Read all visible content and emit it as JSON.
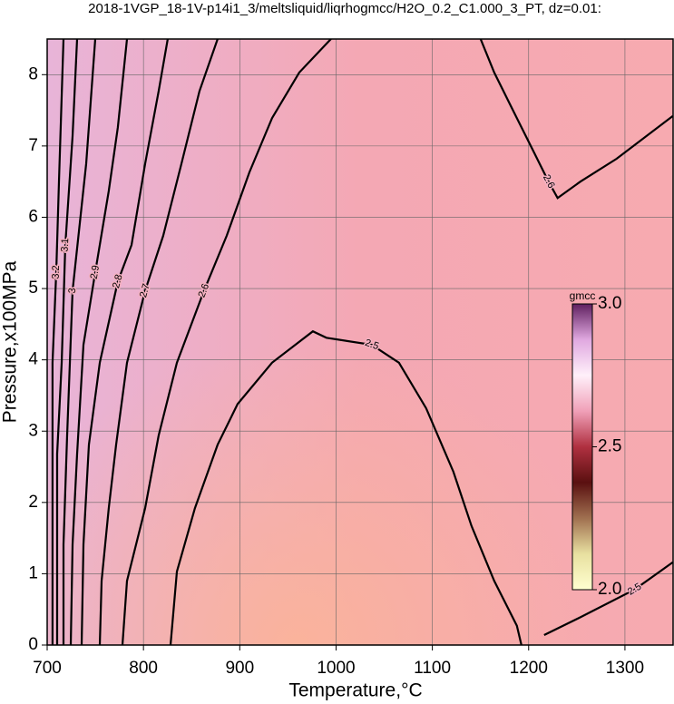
{
  "chart_data": {
    "type": "contour",
    "title": "2018-1VGP_18-1V-p14i1_3/meltsliquid/liqrhogmcc/H2O_0.2_C1.000_3_PT, dz=0.01:",
    "xlabel": "Temperature,°C",
    "ylabel": "Pressure,x100MPa",
    "xlim": [
      700,
      1350
    ],
    "ylim": [
      0,
      8.5
    ],
    "xticks": [
      700,
      800,
      900,
      1000,
      1100,
      1200,
      1300
    ],
    "yticks": [
      0,
      1,
      2,
      3,
      4,
      5,
      6,
      7,
      8
    ],
    "grid": true,
    "line_color": "#000000",
    "background_colors": [
      "#e8b4d8",
      "#f4a8b4",
      "#f7aab0"
    ],
    "contours": [
      {
        "level": 2.5,
        "x": [
          828.1,
          834.7,
          853.5,
          877,
          897.7,
          933.5,
          975.9,
          990,
          1037.1,
          1065.3,
          1093.6,
          1121.8,
          1140.7,
          1164.2,
          1187.8,
          1192.5
        ],
        "y": [
          0,
          1.03,
          1.92,
          2.81,
          3.38,
          3.96,
          4.4,
          4.31,
          4.21,
          3.96,
          3.32,
          2.43,
          1.67,
          0.9,
          0.27,
          0
        ]
      },
      {
        "level": 2.5,
        "x": [
          1216,
          1253.7,
          1310.2,
          1349.7
        ],
        "y": [
          0.14,
          0.39,
          0.78,
          1.16
        ]
      },
      {
        "level": 2.6,
        "x": [
          1150.1,
          1164.2,
          1183,
          1206.6,
          1220.7,
          1230.1,
          1253.7,
          1291.3,
          1349.7
        ],
        "y": [
          8.5,
          8.03,
          7.52,
          6.88,
          6.5,
          6.27,
          6.5,
          6.82,
          7.42
        ]
      },
      {
        "level": 2.6,
        "x": [
          778.2,
          782.9,
          801.7,
          815.8,
          834.7,
          862.9,
          886.4,
          910,
          933.5,
          961.8,
          994.7
        ],
        "y": [
          0,
          0.9,
          1.92,
          2.94,
          3.96,
          4.97,
          5.74,
          6.63,
          7.39,
          8.03,
          8.5
        ]
      },
      {
        "level": 2.7,
        "x": [
          754.6,
          756.5,
          764,
          771.6,
          782.9,
          801.7,
          820.5,
          839.4,
          858.2,
          877
        ],
        "y": [
          0,
          0.9,
          1.92,
          2.81,
          3.96,
          4.97,
          5.74,
          6.75,
          7.77,
          8.5
        ]
      },
      {
        "level": 2.8,
        "x": [
          735.8,
          737.7,
          743.3,
          754.6,
          773.4,
          787.6,
          801.7,
          815.8,
          825.2
        ],
        "y": [
          0,
          1.41,
          2.81,
          3.96,
          5.1,
          5.61,
          6.75,
          7.77,
          8.5
        ]
      },
      {
        "level": 2.9,
        "x": [
          724.5,
          726.4,
          731.1,
          737.7,
          749.9,
          764,
          773.4,
          782.9
        ],
        "y": [
          0,
          1.41,
          2.68,
          4.21,
          5.23,
          6.37,
          7.26,
          8.5
        ]
      },
      {
        "level": 3,
        "x": [
          717,
          717,
          720.7,
          726.4,
          740.5,
          749.9
        ],
        "y": [
          0,
          1.41,
          2.94,
          4.97,
          6.75,
          8.5
        ]
      },
      {
        "level": 3.1,
        "x": [
          710.4,
          710.4,
          715.1,
          718.8,
          726.4,
          731.1
        ],
        "y": [
          0,
          2.68,
          3.96,
          5.61,
          7.14,
          8.5
        ]
      },
      {
        "level": 3.2,
        "x": [
          705.6,
          705.6,
          709.4,
          712.2,
          717
        ],
        "y": [
          0,
          3.96,
          5.23,
          6.5,
          8.5
        ]
      }
    ],
    "colorbar": {
      "label": "gmcc",
      "lim": [
        2.0,
        3.0
      ],
      "ticks": [
        {
          "value": 2.0,
          "label": "2.0"
        },
        2.5,
        {
          "value": 3.0,
          "label": "3.0"
        }
      ],
      "colors": [
        "#ffffd0",
        "#e8e0a0",
        "#a07050",
        "#5a1010",
        "#b03040",
        "#f0a0b8",
        "#fff0fa",
        "#e0a8e0",
        "#602060"
      ]
    }
  }
}
